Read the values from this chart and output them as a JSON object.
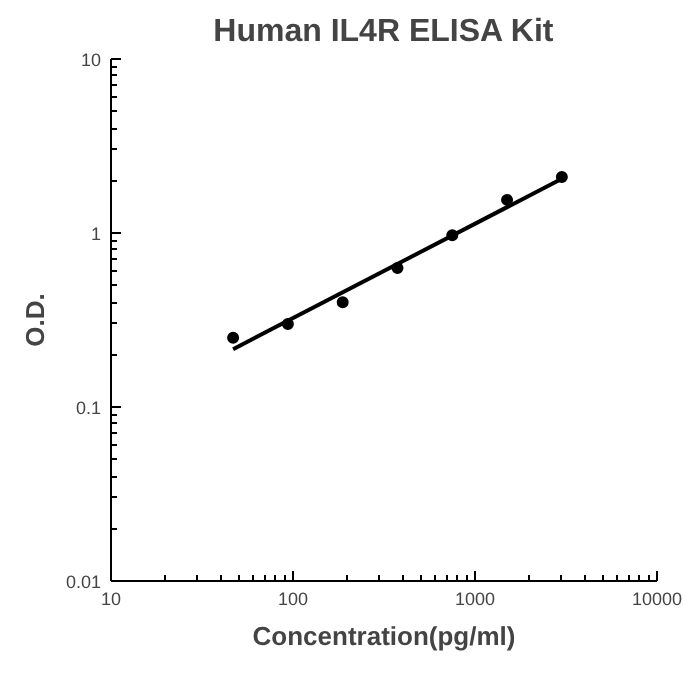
{
  "chart_data": {
    "type": "scatter",
    "title": "Human IL4R ELISA Kit",
    "xlabel": "Concentration(pg/ml)",
    "ylabel": "O.D.",
    "log": "xy",
    "grid": false,
    "xlim": [
      10,
      10000
    ],
    "xticks": [
      10,
      100,
      1000,
      10000
    ],
    "ylim": [
      0.01,
      10
    ],
    "yticks": [
      0.01,
      0.1,
      1,
      10
    ],
    "series": [
      {
        "marker": "circle",
        "color": "#000000",
        "x": [
          46.875,
          93.75,
          187.5,
          375,
          750,
          1500,
          3000
        ],
        "values": [
          0.25,
          0.3,
          0.4,
          0.63,
          0.97,
          1.55,
          2.1
        ]
      },
      {
        "type": "line",
        "color": "#000000",
        "x": [
          46.875,
          3000
        ],
        "values": [
          0.215,
          2.05
        ]
      }
    ]
  }
}
